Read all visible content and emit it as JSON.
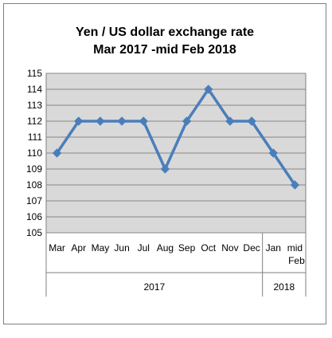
{
  "chart_data": {
    "type": "line",
    "title_line1": "Yen / US dollar exchange rate",
    "title_line2": "Mar 2017 -mid Feb 2018",
    "categories": [
      "Mar",
      "Apr",
      "May",
      "Jun",
      "Jul",
      "Aug",
      "Sep",
      "Oct",
      "Nov",
      "Dec",
      "Jan",
      "mid Feb"
    ],
    "values": [
      110,
      112,
      112,
      112,
      112,
      109,
      112,
      114,
      112,
      112,
      110,
      108
    ],
    "year_groups": [
      {
        "label": "2017",
        "start": 0,
        "end": 9
      },
      {
        "label": "2018",
        "start": 10,
        "end": 11
      }
    ],
    "ylim": [
      105,
      115
    ],
    "yticks": [
      105,
      106,
      107,
      108,
      109,
      110,
      111,
      112,
      113,
      114,
      115
    ],
    "grid": true,
    "legend": "none",
    "xlabel": "",
    "ylabel": "",
    "colors": {
      "series": "#4a7ebb",
      "plot_background": "#d9d9d9",
      "gridline": "#888888",
      "frame": "#7f7f7f"
    }
  }
}
